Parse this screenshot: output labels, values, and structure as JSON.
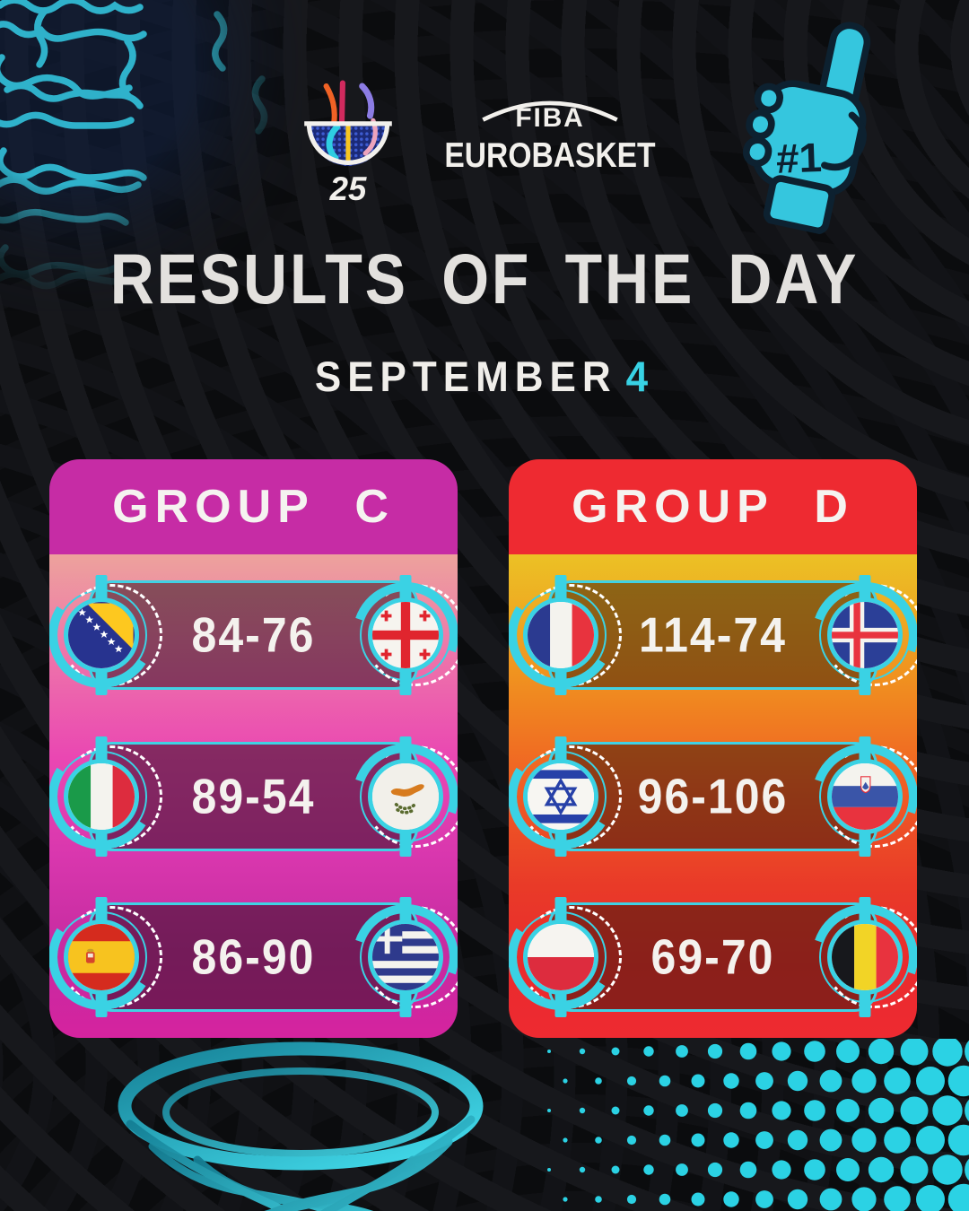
{
  "brand": {
    "fiba": "FIBA",
    "eurobasket": "EUROBASKET",
    "logo_year": "25",
    "foam_finger_label": "#1"
  },
  "header": {
    "title": "RESULTS OF THE DAY",
    "date_month": "SEPTEMBER",
    "date_day": "4"
  },
  "groups": [
    {
      "name": "GROUP C",
      "header_color": "#c62ca5",
      "matches": [
        {
          "home_team": "Bosnia and Herzegovina",
          "away_team": "Georgia",
          "score": "84-76"
        },
        {
          "home_team": "Italy",
          "away_team": "Cyprus",
          "score": "89-54"
        },
        {
          "home_team": "Spain",
          "away_team": "Greece",
          "score": "86-90"
        }
      ]
    },
    {
      "name": "GROUP D",
      "header_color": "#ee2a31",
      "matches": [
        {
          "home_team": "France",
          "away_team": "Iceland",
          "score": "114-74"
        },
        {
          "home_team": "Israel",
          "away_team": "Slovenia",
          "score": "96-106"
        },
        {
          "home_team": "Poland",
          "away_team": "Belgium",
          "score": "69-70"
        }
      ]
    }
  ],
  "colors": {
    "accent_cyan": "#38d2e4",
    "background": "#0b0c0e",
    "title_text": "#e3e1de",
    "date_day": "#38d2e4"
  }
}
